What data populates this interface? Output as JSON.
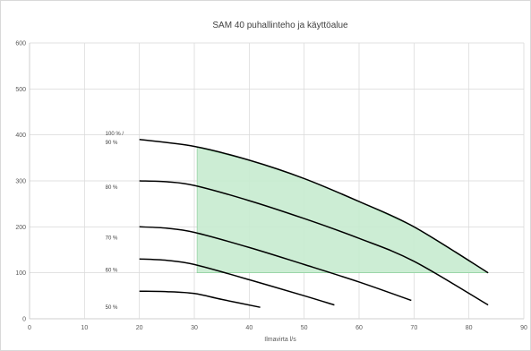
{
  "chart_data": {
    "type": "line",
    "title": "SAM 40 puhallinteho ja käyttöalue",
    "xlabel": "Ilmavirta l/s",
    "ylabel": "",
    "xlim": [
      0,
      90
    ],
    "ylim": [
      0,
      600
    ],
    "x_ticks": [
      0,
      10,
      20,
      30,
      40,
      50,
      60,
      70,
      80,
      90
    ],
    "y_ticks": [
      0,
      100,
      200,
      300,
      400,
      500,
      600
    ],
    "grid": true,
    "legend": "none",
    "series": [
      {
        "name": "100 % / 90 %",
        "label_lines": [
          "100 % /",
          "90 %"
        ],
        "x": [
          20,
          30,
          40,
          50,
          60,
          70,
          83.5
        ],
        "y": [
          390,
          375,
          345,
          305,
          255,
          200,
          100
        ]
      },
      {
        "name": "80 %",
        "label_lines": [
          "80 %"
        ],
        "x": [
          20,
          25,
          30,
          40,
          50,
          60,
          70,
          83.5
        ],
        "y": [
          300,
          298,
          290,
          257,
          218,
          175,
          125,
          30
        ]
      },
      {
        "name": "70 %",
        "label_lines": [
          "70 %"
        ],
        "x": [
          20,
          25,
          30,
          40,
          50,
          60,
          69.5
        ],
        "y": [
          200,
          197,
          188,
          155,
          118,
          80,
          40
        ]
      },
      {
        "name": "60 %",
        "label_lines": [
          "60 %"
        ],
        "x": [
          20,
          25,
          30,
          40,
          50,
          55.5
        ],
        "y": [
          130,
          127,
          118,
          85,
          50,
          30
        ]
      },
      {
        "name": "50 %",
        "label_lines": [
          "50 %"
        ],
        "x": [
          20,
          25,
          30,
          35,
          42
        ],
        "y": [
          60,
          59,
          55,
          42,
          25
        ]
      }
    ],
    "operating_area": {
      "color": "#c6ebcf",
      "edge_color": "#7fc991",
      "polygon": [
        [
          30.5,
          373
        ],
        [
          40,
          345
        ],
        [
          50,
          305
        ],
        [
          60,
          255
        ],
        [
          70,
          200
        ],
        [
          83.5,
          100
        ],
        [
          30.5,
          100
        ]
      ]
    }
  }
}
